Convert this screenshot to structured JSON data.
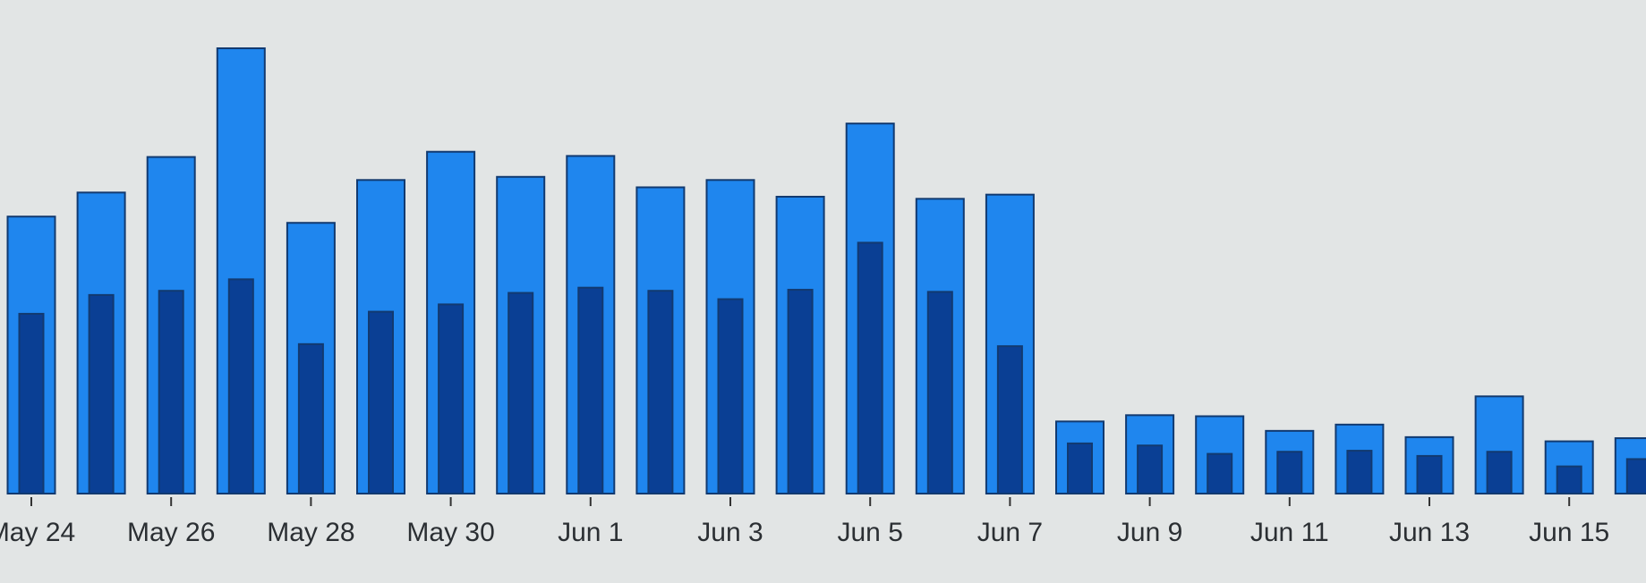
{
  "chart_data": {
    "type": "bar",
    "categories": [
      "May 24",
      null,
      "May 26",
      null,
      "May 28",
      null,
      "May 30",
      null,
      "Jun 1",
      null,
      "Jun 3",
      null,
      "Jun 5",
      null,
      "Jun 7",
      null,
      "Jun 9",
      null,
      "Jun 11",
      null,
      "Jun 13",
      null,
      "Jun 15",
      null
    ],
    "series": [
      {
        "color": "#1f86ee",
        "values": [
          265,
          288,
          322,
          426,
          259,
          300,
          327,
          303,
          323,
          293,
          300,
          284,
          354,
          282,
          286,
          69,
          75,
          74,
          60,
          66,
          54,
          93,
          50,
          53
        ]
      },
      {
        "color": "#0a3f94",
        "values": [
          172,
          190,
          194,
          205,
          143,
          174,
          181,
          192,
          197,
          194,
          186,
          195,
          240,
          193,
          141,
          48,
          46,
          38,
          40,
          41,
          36,
          40,
          26,
          33
        ]
      }
    ]
  }
}
